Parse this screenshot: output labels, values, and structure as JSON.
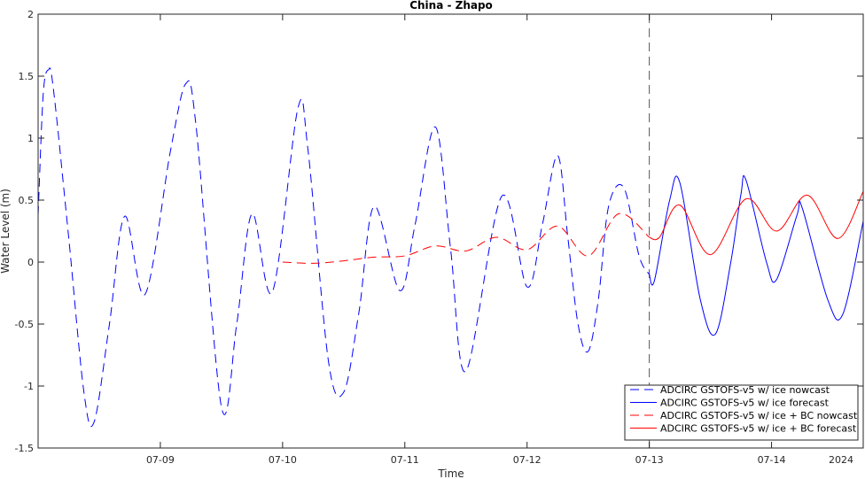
{
  "chart_data": {
    "type": "line",
    "title": "China - Zhapo",
    "xlabel": "Time",
    "ylabel": "Water Level (m)",
    "year_label": "2024",
    "x_range": [
      "2024-07-08 00:00",
      "2024-07-14 18:00"
    ],
    "ylim": [
      -1.5,
      2
    ],
    "yticks": [
      -1.5,
      -1,
      -0.5,
      0,
      0.5,
      1,
      1.5,
      2
    ],
    "ytick_labels": [
      "-1.5",
      "-1",
      "-0.5",
      "0",
      "0.5",
      "1",
      "1.5",
      "2"
    ],
    "xticks": [
      "2024-07-09 00:00",
      "2024-07-10 00:00",
      "2024-07-11 00:00",
      "2024-07-12 00:00",
      "2024-07-13 00:00",
      "2024-07-14 00:00"
    ],
    "xtick_labels": [
      "07-09",
      "07-10",
      "07-11",
      "07-12",
      "07-13",
      "07-14"
    ],
    "nowcast_forecast_boundary": "2024-07-13 00:00",
    "grid": false,
    "legend_position": "bottom-right",
    "series": [
      {
        "name": "ADCIRC GSTOFS-v5 w/ ice nowcast",
        "color": "#0000ff",
        "style": "dashed",
        "points": [
          [
            "2024-07-08 00:00",
            0.38
          ],
          [
            "2024-07-08 01:00",
            1.35
          ],
          [
            "2024-07-08 02:00",
            1.55
          ],
          [
            "2024-07-08 03:00",
            1.4
          ],
          [
            "2024-07-08 06:00",
            0.2
          ],
          [
            "2024-07-08 09:00",
            -1.05
          ],
          [
            "2024-07-08 11:00",
            -1.29
          ],
          [
            "2024-07-08 14:00",
            -0.5
          ],
          [
            "2024-07-08 17:00",
            0.37
          ],
          [
            "2024-07-08 21:00",
            -0.26
          ],
          [
            "2024-07-09 02:00",
            0.9
          ],
          [
            "2024-07-09 05:00",
            1.44
          ],
          [
            "2024-07-09 07:00",
            1.1
          ],
          [
            "2024-07-09 12:00",
            -1.17
          ],
          [
            "2024-07-09 15:00",
            -0.5
          ],
          [
            "2024-07-09 18:00",
            0.39
          ],
          [
            "2024-07-09 22:00",
            -0.24
          ],
          [
            "2024-07-10 03:00",
            1.24
          ],
          [
            "2024-07-10 05:00",
            0.9
          ],
          [
            "2024-07-10 09:00",
            -0.8
          ],
          [
            "2024-07-10 12:00",
            -1.05
          ],
          [
            "2024-07-10 15:00",
            -0.4
          ],
          [
            "2024-07-10 18:00",
            0.45
          ],
          [
            "2024-07-10 23:00",
            -0.23
          ],
          [
            "2024-07-11 02:00",
            0.3
          ],
          [
            "2024-07-11 06:00",
            1.09
          ],
          [
            "2024-07-11 09:00",
            0.1
          ],
          [
            "2024-07-11 12:00",
            -0.88
          ],
          [
            "2024-07-11 19:00",
            0.53
          ],
          [
            "2024-07-12 00:00",
            -0.2
          ],
          [
            "2024-07-12 03:00",
            0.3
          ],
          [
            "2024-07-12 06:00",
            0.86
          ],
          [
            "2024-07-12 08:00",
            0.2
          ],
          [
            "2024-07-12 10:00",
            -0.5
          ],
          [
            "2024-07-12 12:00",
            -0.72
          ],
          [
            "2024-07-12 14:00",
            -0.3
          ],
          [
            "2024-07-12 16:00",
            0.45
          ],
          [
            "2024-07-12 19:00",
            0.6
          ],
          [
            "2024-07-12 22:00",
            0.05
          ],
          [
            "2024-07-13 00:00",
            -0.1
          ]
        ]
      },
      {
        "name": "ADCIRC GSTOFS-v5 w/ ice forecast",
        "color": "#0000ff",
        "style": "solid",
        "points": [
          [
            "2024-07-13 00:00",
            -0.1
          ],
          [
            "2024-07-13 01:00",
            -0.15
          ],
          [
            "2024-07-13 04:00",
            0.5
          ],
          [
            "2024-07-13 06:00",
            0.64
          ],
          [
            "2024-07-13 10:00",
            -0.3
          ],
          [
            "2024-07-13 13:00",
            -0.58
          ],
          [
            "2024-07-13 16:00",
            0.0
          ],
          [
            "2024-07-13 18:00",
            0.55
          ],
          [
            "2024-07-13 19:00",
            0.66
          ],
          [
            "2024-07-13 23:00",
            0.0
          ],
          [
            "2024-07-14 01:00",
            -0.14
          ],
          [
            "2024-07-14 05:00",
            0.38
          ],
          [
            "2024-07-14 06:00",
            0.44
          ],
          [
            "2024-07-14 11:00",
            -0.3
          ],
          [
            "2024-07-14 14:00",
            -0.42
          ],
          [
            "2024-07-14 18:00",
            0.33
          ]
        ]
      },
      {
        "name": "ADCIRC GSTOFS-v5 w/ ice + BC nowcast",
        "color": "#ff0000",
        "style": "dashed",
        "points": [
          [
            "2024-07-10 00:00",
            0.0
          ],
          [
            "2024-07-10 06:00",
            -0.01
          ],
          [
            "2024-07-10 12:00",
            0.01
          ],
          [
            "2024-07-10 18:00",
            0.04
          ],
          [
            "2024-07-11 00:00",
            0.05
          ],
          [
            "2024-07-11 06:00",
            0.13
          ],
          [
            "2024-07-11 12:00",
            0.09
          ],
          [
            "2024-07-11 18:00",
            0.2
          ],
          [
            "2024-07-12 00:00",
            0.1
          ],
          [
            "2024-07-12 06:00",
            0.29
          ],
          [
            "2024-07-12 12:00",
            0.05
          ],
          [
            "2024-07-12 18:00",
            0.39
          ],
          [
            "2024-07-13 00:00",
            0.2
          ]
        ]
      },
      {
        "name": "ADCIRC GSTOFS-v5 w/ ice + BC forecast",
        "color": "#ff0000",
        "style": "solid",
        "points": [
          [
            "2024-07-13 00:00",
            0.2
          ],
          [
            "2024-07-13 02:00",
            0.2
          ],
          [
            "2024-07-13 06:00",
            0.46
          ],
          [
            "2024-07-13 12:00",
            0.06
          ],
          [
            "2024-07-13 19:00",
            0.51
          ],
          [
            "2024-07-14 01:00",
            0.25
          ],
          [
            "2024-07-14 07:00",
            0.54
          ],
          [
            "2024-07-14 13:00",
            0.19
          ],
          [
            "2024-07-14 18:00",
            0.57
          ]
        ]
      }
    ]
  }
}
